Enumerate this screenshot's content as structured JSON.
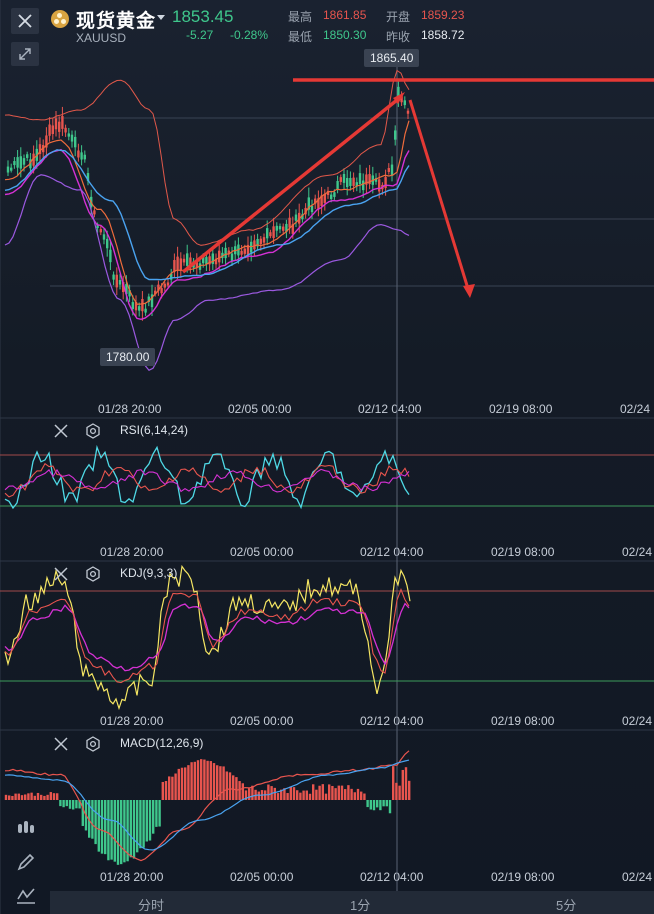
{
  "header": {
    "title": "现货黄金",
    "symbol": "XAUUSD",
    "price": "1853.45",
    "change": "-5.27",
    "change_pct": "-0.28%",
    "high_label": "最高",
    "high_value": "1861.85",
    "open_label": "开盘",
    "open_value": "1859.23",
    "low_label": "最低",
    "low_value": "1850.30",
    "prev_close_label": "昨收",
    "prev_close_value": "1858.72"
  },
  "main_chart": {
    "high_marker": "1865.40",
    "low_marker": "1780.00",
    "x_ticks": [
      "01/28 20:00",
      "02/05 00:00",
      "02/12 04:00",
      "02/19 08:00",
      "02/24"
    ]
  },
  "indicators": [
    {
      "name": "RSI(6,14,24)",
      "x_ticks": [
        "01/28 20:00",
        "02/05 00:00",
        "02/12 04:00",
        "02/19 08:00",
        "02/24"
      ]
    },
    {
      "name": "KDJ(9,3,3)",
      "x_ticks": [
        "01/28 20:00",
        "02/05 00:00",
        "02/12 04:00",
        "02/19 08:00",
        "02/24"
      ]
    },
    {
      "name": "MACD(12,26,9)",
      "x_ticks": [
        "01/28 20:00",
        "02/05 00:00",
        "02/12 04:00",
        "02/19 08:00",
        "02/24"
      ]
    }
  ],
  "bottom_tabs": [
    "分时",
    "1分",
    "5分"
  ],
  "colors": {
    "up": "#e8554e",
    "down": "#3fc78c",
    "accent_arrow": "#e53935",
    "ma_orange": "#ef6c3c",
    "ma_magenta": "#d531d4",
    "ma_blue": "#4aa3f0",
    "boll_upper": "#e0584a",
    "boll_lower": "#9b59e0",
    "kdj_yellow": "#f5e663",
    "rsi_cyan": "#4fd9e6"
  },
  "icons": [
    "close-icon",
    "expand-icon",
    "gold-coin-icon",
    "settings-icon",
    "candle-type-icon",
    "draw-pen-icon",
    "indicator-icon"
  ]
}
